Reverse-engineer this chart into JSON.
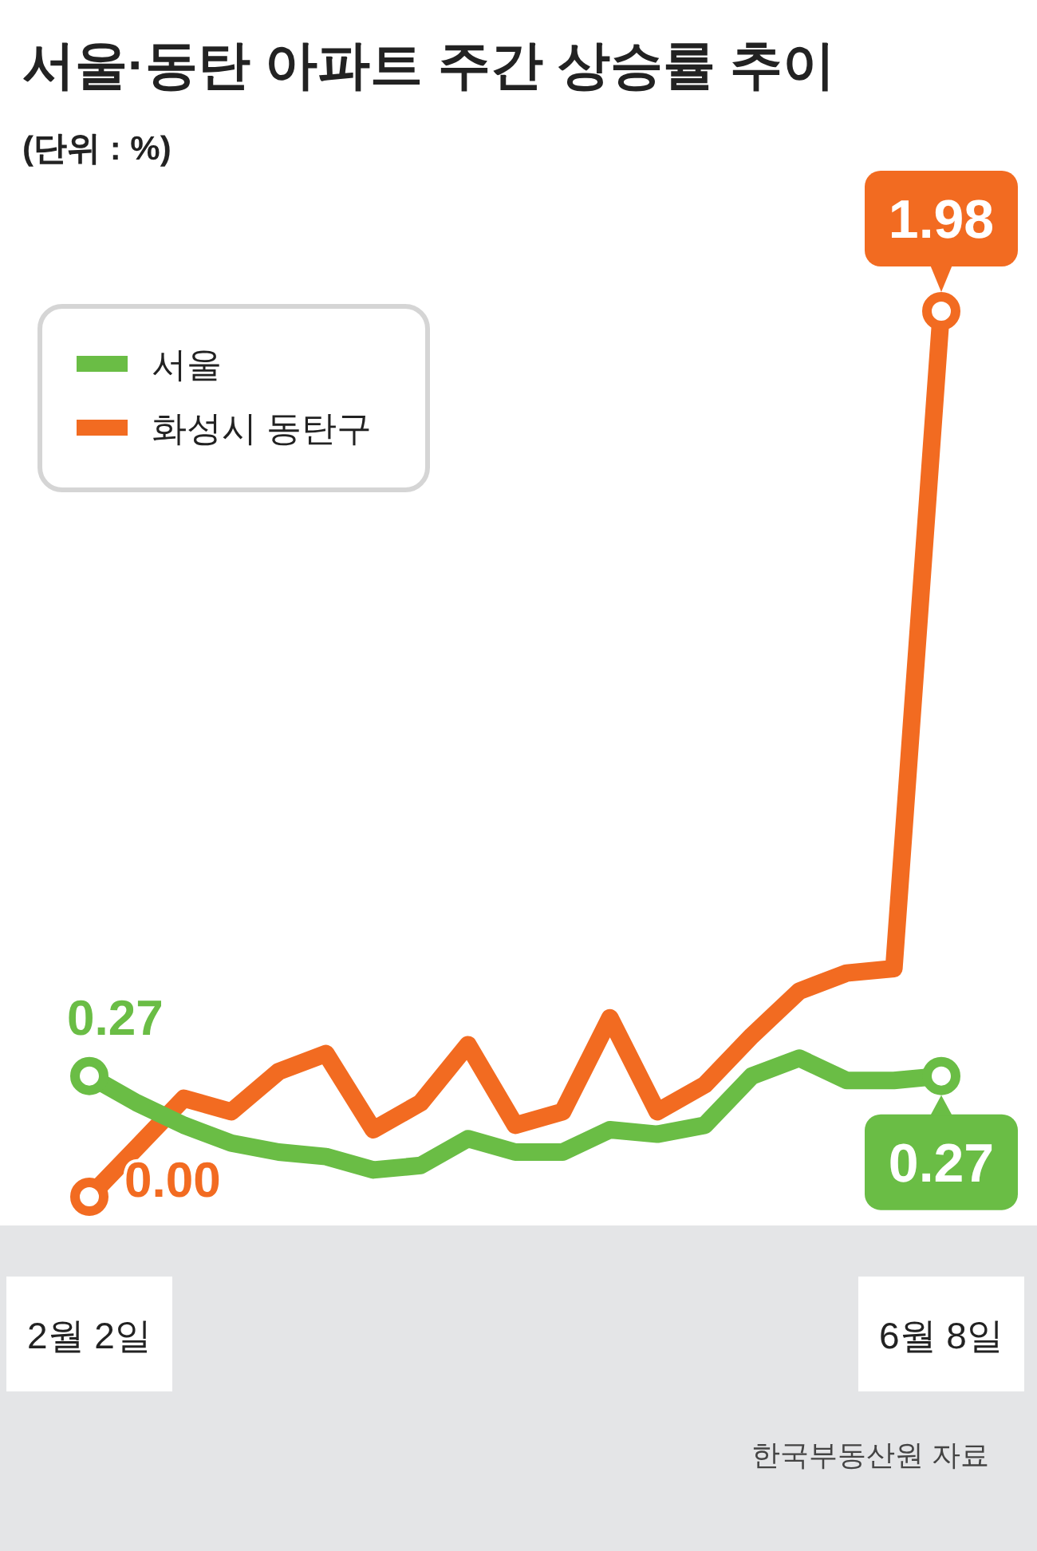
{
  "chart_data": {
    "type": "line",
    "title": "서울·동탄 아파트 주간 상승률 추이",
    "subtitle": "(단위 : %)",
    "categories": [
      "2월 2일",
      null,
      null,
      null,
      null,
      null,
      null,
      null,
      null,
      null,
      null,
      null,
      null,
      null,
      null,
      null,
      null,
      null,
      "6월 8일"
    ],
    "series": [
      {
        "name": "서울",
        "color": "#6abd45",
        "values": [
          0.27,
          0.21,
          0.16,
          0.12,
          0.1,
          0.09,
          0.06,
          0.07,
          0.13,
          0.1,
          0.1,
          0.15,
          0.14,
          0.16,
          0.27,
          0.31,
          0.26,
          0.26,
          0.27
        ],
        "value_labels": [
          "0.27",
          null,
          null,
          null,
          null,
          null,
          null,
          null,
          null,
          null,
          null,
          null,
          null,
          null,
          null,
          null,
          null,
          null,
          "0.27"
        ]
      },
      {
        "name": "화성시 동탄구",
        "color": "#f26b21",
        "values": [
          0.0,
          0.11,
          0.22,
          0.19,
          0.28,
          0.32,
          0.15,
          0.21,
          0.34,
          0.16,
          0.19,
          0.4,
          0.19,
          0.25,
          0.36,
          0.46,
          0.5,
          0.51,
          1.98
        ],
        "value_labels": [
          "0.00",
          null,
          null,
          null,
          null,
          null,
          null,
          null,
          null,
          null,
          null,
          null,
          null,
          null,
          null,
          null,
          null,
          null,
          "1.98"
        ]
      }
    ],
    "legend": "top left",
    "grid": false,
    "annotations": [
      "한국부동산원 자료"
    ]
  }
}
